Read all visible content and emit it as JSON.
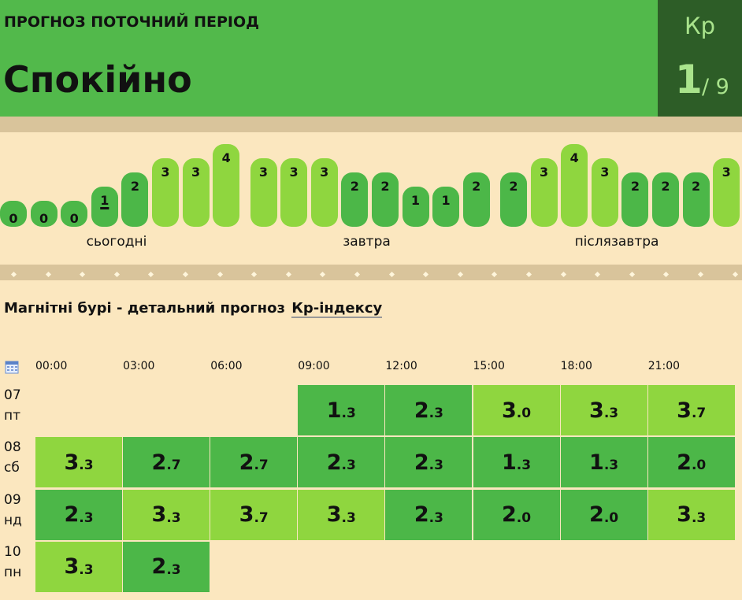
{
  "header": {
    "label": "ПРОГНОЗ ПОТОЧНИЙ ПЕРІОД",
    "status": "Спокійно",
    "index_name": "Кр",
    "current": 1,
    "scale": "/ 9"
  },
  "colors": {
    "low": "#4cb748",
    "high": "#8fd63f",
    "high_from": 3
  },
  "strip": {
    "current_bar": [
      0,
      3
    ],
    "days": [
      {
        "label": "сьогодні",
        "values": [
          0,
          0,
          0,
          1,
          2,
          3,
          3,
          4
        ]
      },
      {
        "label": "завтра",
        "values": [
          3,
          3,
          3,
          2,
          2,
          1,
          1,
          2
        ]
      },
      {
        "label": "післязавтра",
        "values": [
          2,
          3,
          4,
          3,
          2,
          2,
          2,
          3
        ]
      }
    ]
  },
  "detail": {
    "title": "Магнітні бурі - детальний прогноз",
    "link": "Кр-індексу",
    "times": [
      "00:00",
      "03:00",
      "06:00",
      "09:00",
      "12:00",
      "15:00",
      "18:00",
      "21:00"
    ],
    "rows": [
      {
        "date": "07",
        "weekday": "пт",
        "values": [
          null,
          null,
          null,
          "1.3",
          "2.3",
          "3.0",
          "3.3",
          "3.7"
        ]
      },
      {
        "date": "08",
        "weekday": "сб",
        "values": [
          "3.3",
          "2.7",
          "2.7",
          "2.3",
          "2.3",
          "1.3",
          "1.3",
          "2.0"
        ]
      },
      {
        "date": "09",
        "weekday": "нд",
        "values": [
          "2.3",
          "3.3",
          "3.7",
          "3.3",
          "2.3",
          "2.0",
          "2.0",
          "3.3"
        ]
      },
      {
        "date": "10",
        "weekday": "пн",
        "values": [
          "3.3",
          "2.3",
          null,
          null,
          null,
          null,
          null,
          null
        ]
      }
    ]
  }
}
